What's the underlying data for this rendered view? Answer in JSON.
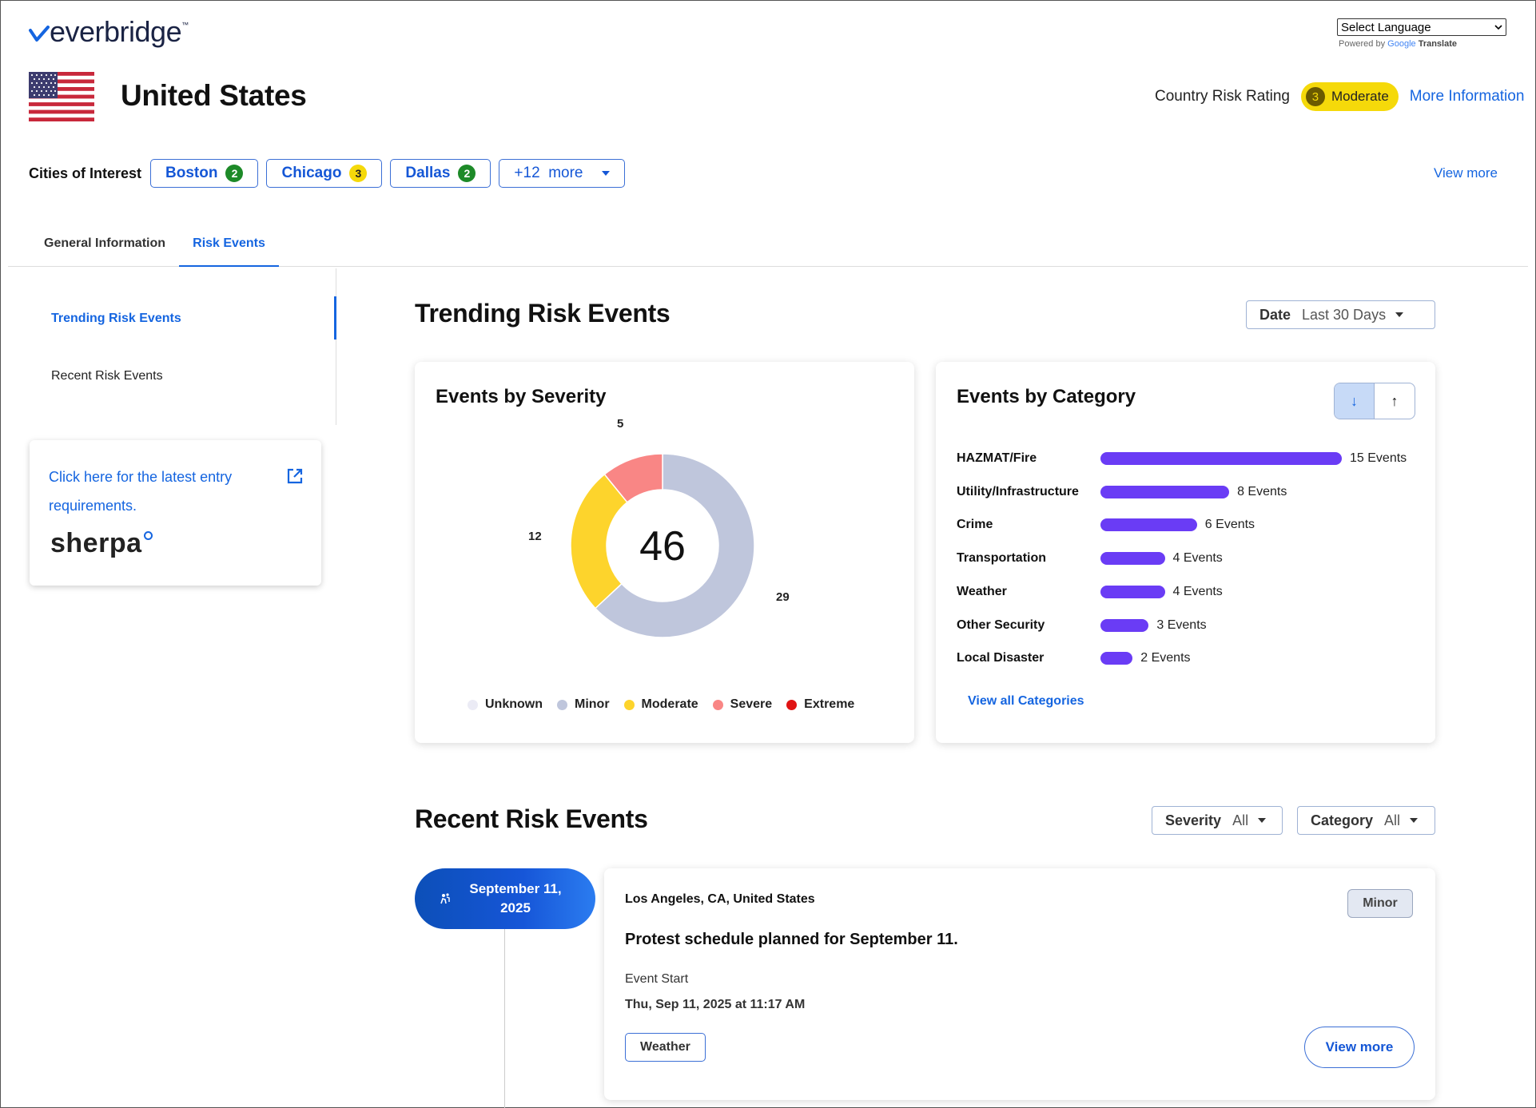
{
  "logo": {
    "text": "everbridge",
    "tm": "™"
  },
  "language": {
    "select_label": "Select Language",
    "powered_by": "Powered by",
    "google": "Google",
    "translate": "Translate"
  },
  "country": {
    "name": "United States"
  },
  "risk": {
    "label": "Country Risk Rating",
    "level_num": "3",
    "level_text": "Moderate",
    "more_info": "More Information",
    "badge_color": "#f5d90a"
  },
  "cities": {
    "label": "Cities of Interest",
    "items": [
      {
        "name": "Boston",
        "count": "2",
        "color": "green"
      },
      {
        "name": "Chicago",
        "count": "3",
        "color": "yellow"
      },
      {
        "name": "Dallas",
        "count": "2",
        "color": "green"
      }
    ],
    "more": "+12  more",
    "view_more": "View more"
  },
  "tabs": [
    {
      "label": "General Information"
    },
    {
      "label": "Risk Events"
    }
  ],
  "leftnav": {
    "items": [
      {
        "label": "Trending Risk Events"
      },
      {
        "label": "Recent Risk Events"
      }
    ]
  },
  "sherpa": {
    "link_text": "Click here for the latest entry requirements.",
    "logo": "sherpa"
  },
  "trending": {
    "title": "Trending Risk Events",
    "date_filter": {
      "label": "Date",
      "value": "Last 30 Days"
    },
    "severity_card": {
      "title": "Events by Severity",
      "total": "46",
      "labels": {
        "severe": "5",
        "moderate": "12",
        "minor": "29"
      }
    },
    "category_card": {
      "title": "Events by Category",
      "sort_desc": "↓",
      "sort_asc": "↑",
      "view_all": "View all Categories"
    }
  },
  "chart_data": [
    {
      "type": "pie",
      "title": "Events by Severity",
      "categories": [
        "Unknown",
        "Minor",
        "Moderate",
        "Severe",
        "Extreme"
      ],
      "values": [
        0,
        29,
        12,
        5,
        0
      ],
      "colors": [
        "#ebebf5",
        "#bfc6dc",
        "#fdd42c",
        "#f98685",
        "#e01313"
      ],
      "center_total": 46,
      "legend": "bottom"
    },
    {
      "type": "bar",
      "orientation": "horizontal",
      "title": "Events by Category",
      "categories": [
        "HAZMAT/Fire",
        "Utility/Infrastructure",
        "Crime",
        "Transportation",
        "Weather",
        "Other Security",
        "Local Disaster"
      ],
      "values": [
        15,
        8,
        6,
        4,
        4,
        3,
        2
      ],
      "value_labels": [
        "15 Events",
        "8 Events",
        "6 Events",
        "4 Events",
        "4 Events",
        "3 Events",
        "2 Events"
      ],
      "color": "#6a3cf5"
    }
  ],
  "recent": {
    "title": "Recent Risk Events",
    "severity_filter": {
      "label": "Severity",
      "value": "All"
    },
    "category_filter": {
      "label": "Category",
      "value": "All"
    },
    "event": {
      "date_line1": "September 11,",
      "date_line2": "2025",
      "location": "Los Angeles, CA, United States",
      "severity": "Minor",
      "title": "Protest schedule planned for September 11.",
      "start_label": "Event Start",
      "start_value": "Thu, Sep 11, 2025 at 11:17 AM",
      "tag": "Weather",
      "view_more": "View more"
    }
  }
}
